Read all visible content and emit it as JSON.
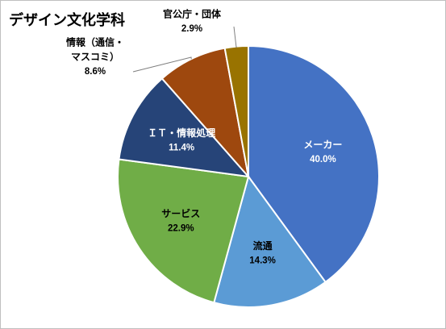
{
  "chart_data": {
    "type": "pie",
    "title": "デザイン文化学科",
    "series": [
      {
        "values": [
          40.0,
          14.3,
          22.9,
          11.4,
          8.6,
          2.9
        ],
        "value_labels": [
          "40.0%",
          "14.3%",
          "22.9%",
          "11.4%",
          "8.6%",
          "2.9%"
        ]
      }
    ],
    "slices": [
      {
        "label": [
          "メーカー"
        ],
        "value": 40.0,
        "value_label": "40.0%",
        "color": "#4472c4",
        "text_color": "#ffffff"
      },
      {
        "label": [
          "流通"
        ],
        "value": 14.3,
        "value_label": "14.3%",
        "color": "#5b9bd5",
        "text_color": "#000000"
      },
      {
        "label": [
          "サービス"
        ],
        "value": 22.9,
        "value_label": "22.9%",
        "color": "#70ad47",
        "text_color": "#000000"
      },
      {
        "label": [
          "ＩＴ・情報処理"
        ],
        "value": 11.4,
        "value_label": "11.4%",
        "color": "#264478",
        "text_color": "#ffffff"
      },
      {
        "label": [
          "情報（通信・",
          "マスコミ）"
        ],
        "value": 8.6,
        "value_label": "8.6%",
        "color": "#9e480e",
        "text_color": "#000000",
        "outside": true
      },
      {
        "label": [
          "官公庁・団体"
        ],
        "value": 2.9,
        "value_label": "2.9%",
        "color": "#997300",
        "text_color": "#000000",
        "outside": true
      }
    ],
    "start_angle": "12 o'clock",
    "direction": "clockwise",
    "legend": "none",
    "data_labels": true
  }
}
